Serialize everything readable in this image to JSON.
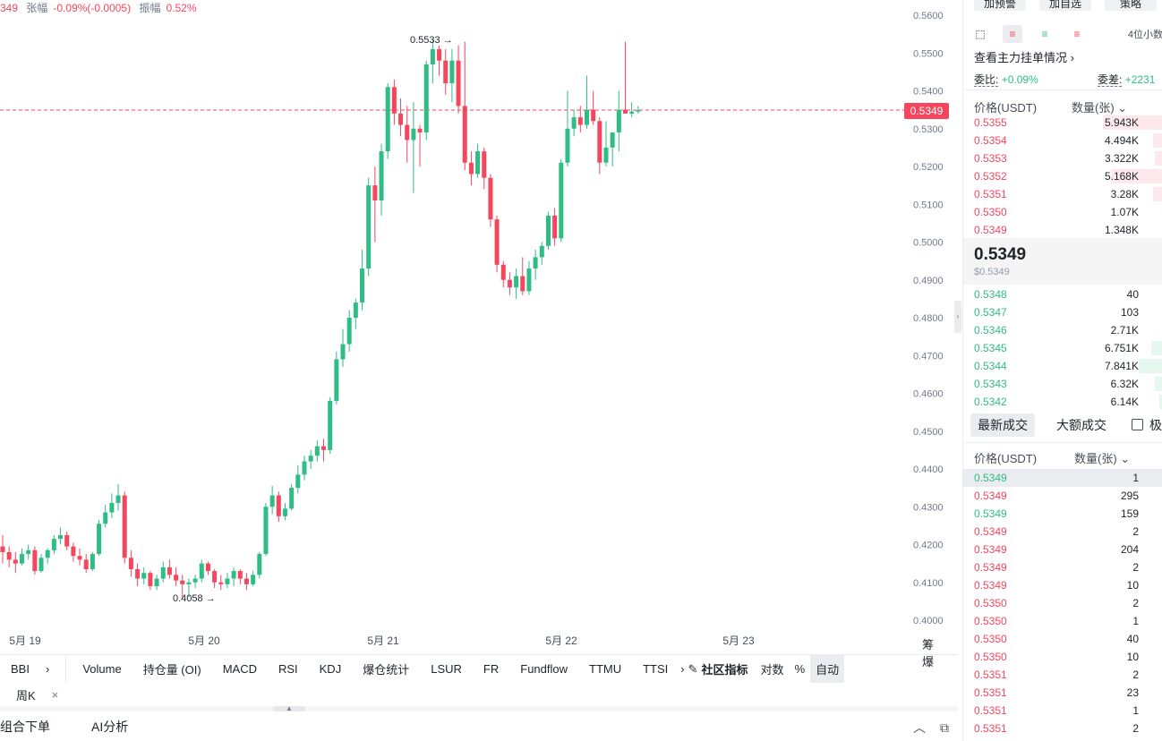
{
  "header": {
    "price_prefix": "349",
    "change_label": "张幅",
    "change_value": "-0.09%(-0.0005)",
    "amplitude_label": "振幅",
    "amplitude_value": "0.52%"
  },
  "chart_data": {
    "type": "candlestick",
    "y_ticks": [
      "0.5600",
      "0.5500",
      "0.5400",
      "0.5300",
      "0.5200",
      "0.5100",
      "0.5000",
      "0.4900",
      "0.4800",
      "0.4700",
      "0.4600",
      "0.4500",
      "0.4400",
      "0.4300",
      "0.4200",
      "0.4100",
      "0.4000"
    ],
    "ylim": [
      0.4,
      0.56
    ],
    "x_ticks": [
      "5月 19",
      "5月 20",
      "5月 21",
      "5月 22",
      "5月 23"
    ],
    "current_price": "0.5349",
    "high_marker": "0.5533",
    "low_marker": "0.4058",
    "candles": [
      [
        0.4195,
        0.4225,
        0.415,
        0.418
      ],
      [
        0.418,
        0.4195,
        0.414,
        0.416
      ],
      [
        0.416,
        0.418,
        0.4125,
        0.415
      ],
      [
        0.415,
        0.419,
        0.4145,
        0.4175
      ],
      [
        0.4175,
        0.42,
        0.416,
        0.4185
      ],
      [
        0.4185,
        0.4195,
        0.412,
        0.413
      ],
      [
        0.413,
        0.4175,
        0.4125,
        0.4165
      ],
      [
        0.4165,
        0.419,
        0.415,
        0.4185
      ],
      [
        0.4185,
        0.4225,
        0.4175,
        0.4215
      ],
      [
        0.4215,
        0.4245,
        0.42,
        0.4225
      ],
      [
        0.4225,
        0.4235,
        0.4185,
        0.4195
      ],
      [
        0.4195,
        0.4205,
        0.4155,
        0.417
      ],
      [
        0.417,
        0.419,
        0.4145,
        0.416
      ],
      [
        0.416,
        0.4175,
        0.4125,
        0.4135
      ],
      [
        0.4135,
        0.418,
        0.413,
        0.4175
      ],
      [
        0.4175,
        0.4265,
        0.417,
        0.4255
      ],
      [
        0.4255,
        0.4305,
        0.4245,
        0.4285
      ],
      [
        0.4285,
        0.4335,
        0.427,
        0.431
      ],
      [
        0.431,
        0.436,
        0.429,
        0.433
      ],
      [
        0.433,
        0.434,
        0.415,
        0.4165
      ],
      [
        0.4165,
        0.4185,
        0.4115,
        0.4135
      ],
      [
        0.4135,
        0.415,
        0.409,
        0.411
      ],
      [
        0.411,
        0.414,
        0.4095,
        0.4125
      ],
      [
        0.4125,
        0.413,
        0.408,
        0.409
      ],
      [
        0.409,
        0.412,
        0.408,
        0.411
      ],
      [
        0.411,
        0.4155,
        0.41,
        0.414
      ],
      [
        0.414,
        0.416,
        0.411,
        0.412
      ],
      [
        0.412,
        0.414,
        0.409,
        0.4105
      ],
      [
        0.4105,
        0.412,
        0.4058,
        0.4095
      ],
      [
        0.4095,
        0.411,
        0.406,
        0.41
      ],
      [
        0.41,
        0.412,
        0.4085,
        0.411
      ],
      [
        0.411,
        0.416,
        0.41,
        0.415
      ],
      [
        0.415,
        0.4155,
        0.412,
        0.413
      ],
      [
        0.413,
        0.4135,
        0.4085,
        0.41
      ],
      [
        0.41,
        0.412,
        0.408,
        0.4095
      ],
      [
        0.4095,
        0.4125,
        0.4085,
        0.411
      ],
      [
        0.411,
        0.414,
        0.409,
        0.413
      ],
      [
        0.413,
        0.4135,
        0.4095,
        0.411
      ],
      [
        0.411,
        0.4125,
        0.408,
        0.4095
      ],
      [
        0.4095,
        0.413,
        0.409,
        0.412
      ],
      [
        0.412,
        0.418,
        0.411,
        0.4175
      ],
      [
        0.4175,
        0.431,
        0.417,
        0.43
      ],
      [
        0.43,
        0.4355,
        0.428,
        0.433
      ],
      [
        0.433,
        0.434,
        0.426,
        0.4275
      ],
      [
        0.4275,
        0.431,
        0.4265,
        0.4295
      ],
      [
        0.4295,
        0.436,
        0.429,
        0.435
      ],
      [
        0.435,
        0.441,
        0.4335,
        0.4385
      ],
      [
        0.4385,
        0.4435,
        0.437,
        0.442
      ],
      [
        0.442,
        0.445,
        0.44,
        0.4435
      ],
      [
        0.4435,
        0.4475,
        0.442,
        0.446
      ],
      [
        0.446,
        0.448,
        0.442,
        0.445
      ],
      [
        0.445,
        0.459,
        0.444,
        0.458
      ],
      [
        0.458,
        0.471,
        0.457,
        0.469
      ],
      [
        0.469,
        0.477,
        0.467,
        0.473
      ],
      [
        0.473,
        0.482,
        0.471,
        0.48
      ],
      [
        0.48,
        0.485,
        0.477,
        0.484
      ],
      [
        0.484,
        0.498,
        0.482,
        0.493
      ],
      [
        0.493,
        0.517,
        0.491,
        0.515
      ],
      [
        0.515,
        0.52,
        0.5,
        0.511
      ],
      [
        0.511,
        0.526,
        0.507,
        0.524
      ],
      [
        0.524,
        0.542,
        0.522,
        0.541
      ],
      [
        0.541,
        0.543,
        0.531,
        0.534
      ],
      [
        0.534,
        0.538,
        0.528,
        0.531
      ],
      [
        0.531,
        0.536,
        0.521,
        0.527
      ],
      [
        0.527,
        0.537,
        0.513,
        0.53
      ],
      [
        0.53,
        0.531,
        0.52,
        0.529
      ],
      [
        0.529,
        0.548,
        0.527,
        0.547
      ],
      [
        0.547,
        0.5533,
        0.542,
        0.551
      ],
      [
        0.551,
        0.552,
        0.544,
        0.548
      ],
      [
        0.548,
        0.551,
        0.539,
        0.542
      ],
      [
        0.542,
        0.551,
        0.537,
        0.548
      ],
      [
        0.548,
        0.552,
        0.534,
        0.536
      ],
      [
        0.536,
        0.553,
        0.519,
        0.521
      ],
      [
        0.521,
        0.524,
        0.515,
        0.518
      ],
      [
        0.518,
        0.526,
        0.517,
        0.524
      ],
      [
        0.524,
        0.525,
        0.514,
        0.517
      ],
      [
        0.517,
        0.518,
        0.504,
        0.506
      ],
      [
        0.506,
        0.507,
        0.492,
        0.494
      ],
      [
        0.494,
        0.495,
        0.488,
        0.49
      ],
      [
        0.49,
        0.492,
        0.486,
        0.488
      ],
      [
        0.488,
        0.493,
        0.485,
        0.491
      ],
      [
        0.491,
        0.496,
        0.486,
        0.487
      ],
      [
        0.487,
        0.495,
        0.486,
        0.493
      ],
      [
        0.493,
        0.498,
        0.49,
        0.496
      ],
      [
        0.496,
        0.5,
        0.494,
        0.499
      ],
      [
        0.499,
        0.508,
        0.498,
        0.507
      ],
      [
        0.507,
        0.509,
        0.499,
        0.501
      ],
      [
        0.501,
        0.522,
        0.5,
        0.521
      ],
      [
        0.521,
        0.54,
        0.52,
        0.53
      ],
      [
        0.53,
        0.535,
        0.528,
        0.533
      ],
      [
        0.533,
        0.536,
        0.529,
        0.531
      ],
      [
        0.531,
        0.544,
        0.53,
        0.535
      ],
      [
        0.535,
        0.54,
        0.531,
        0.532
      ],
      [
        0.532,
        0.533,
        0.518,
        0.521
      ],
      [
        0.521,
        0.532,
        0.52,
        0.525
      ],
      [
        0.525,
        0.528,
        0.52,
        0.529
      ],
      [
        0.529,
        0.54,
        0.524,
        0.535
      ],
      [
        0.535,
        0.553,
        0.534,
        0.534
      ],
      [
        0.534,
        0.537,
        0.533,
        0.5345
      ],
      [
        0.5345,
        0.536,
        0.534,
        0.5349
      ]
    ]
  },
  "axis_buttons": {
    "chip": "筹",
    "burst": "爆"
  },
  "indicators": {
    "first": "BBI",
    "items": [
      "Volume",
      "持仓量 (OI)",
      "MACD",
      "RSI",
      "KDJ",
      "爆仓统计",
      "LSUR",
      "FR",
      "Fundflow",
      "TTMU",
      "TTSI"
    ],
    "community": "社区指标",
    "log": "对数",
    "percent": "%",
    "auto": "自动"
  },
  "interval_tab": "周K",
  "bottom_tabs": [
    "组合下单",
    "AI分析"
  ],
  "right_panel": {
    "buttons": [
      "加预警",
      "加自选",
      "策略"
    ],
    "decimals": "4位小数",
    "main_orders": "查看主力挂单情况",
    "ratio_label": "委比:",
    "ratio_value": "+0.09%",
    "diff_label": "委差:",
    "diff_value": "+2231",
    "col_price": "价格(USDT)",
    "col_qty": "数量(张)",
    "asks": [
      {
        "price": "0.5355",
        "qty": "5.943K",
        "depth": 0.3
      },
      {
        "price": "0.5354",
        "qty": "4.494K",
        "depth": 0.05
      },
      {
        "price": "0.5353",
        "qty": "3.322K",
        "depth": 0.04
      },
      {
        "price": "0.5352",
        "qty": "5.168K",
        "depth": 0.26
      },
      {
        "price": "0.5351",
        "qty": "3.28K",
        "depth": 0.05
      },
      {
        "price": "0.5350",
        "qty": "1.07K",
        "depth": 0.0
      },
      {
        "price": "0.5349",
        "qty": "1.348K",
        "depth": 0.0
      }
    ],
    "last_price": "0.5349",
    "last_price_usd": "$0.5349",
    "bids": [
      {
        "price": "0.5348",
        "qty": "40",
        "depth": 0.0
      },
      {
        "price": "0.5347",
        "qty": "103",
        "depth": 0.0
      },
      {
        "price": "0.5346",
        "qty": "2.71K",
        "depth": 0.0
      },
      {
        "price": "0.5345",
        "qty": "6.751K",
        "depth": 0.06
      },
      {
        "price": "0.5344",
        "qty": "7.841K",
        "depth": 0.12
      },
      {
        "price": "0.5343",
        "qty": "6.32K",
        "depth": 0.04
      },
      {
        "price": "0.5342",
        "qty": "6.14K",
        "depth": 0.02
      }
    ],
    "trade_tab_latest": "最新成交",
    "trade_tab_large": "大额成交",
    "trade_checkbox_label": "极",
    "trades": [
      {
        "price": "0.5349",
        "qty": "1",
        "side": "buy"
      },
      {
        "price": "0.5349",
        "qty": "295",
        "side": "sell"
      },
      {
        "price": "0.5349",
        "qty": "159",
        "side": "buy"
      },
      {
        "price": "0.5349",
        "qty": "2",
        "side": "sell"
      },
      {
        "price": "0.5349",
        "qty": "204",
        "side": "sell"
      },
      {
        "price": "0.5349",
        "qty": "2",
        "side": "sell"
      },
      {
        "price": "0.5349",
        "qty": "10",
        "side": "sell"
      },
      {
        "price": "0.5350",
        "qty": "2",
        "side": "sell"
      },
      {
        "price": "0.5350",
        "qty": "1",
        "side": "sell"
      },
      {
        "price": "0.5350",
        "qty": "40",
        "side": "sell"
      },
      {
        "price": "0.5350",
        "qty": "10",
        "side": "sell"
      },
      {
        "price": "0.5351",
        "qty": "2",
        "side": "sell"
      },
      {
        "price": "0.5351",
        "qty": "23",
        "side": "sell"
      },
      {
        "price": "0.5351",
        "qty": "1",
        "side": "sell"
      },
      {
        "price": "0.5351",
        "qty": "2",
        "side": "sell"
      }
    ]
  }
}
